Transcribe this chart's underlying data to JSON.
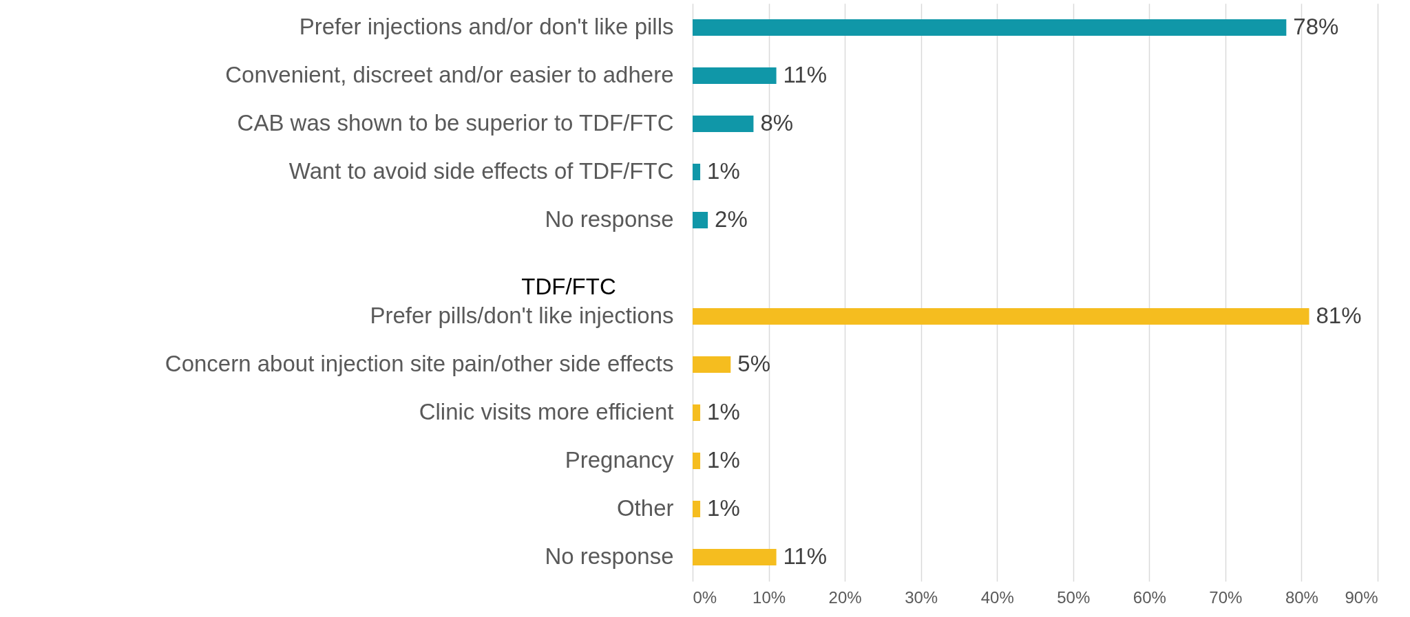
{
  "chart_data": {
    "type": "bar",
    "orientation": "horizontal",
    "categories": [
      "Prefer injections and/or don't like pills",
      "Convenient, discreet and/or easier to adhere",
      "CAB was shown to be superior to TDF/FTC",
      "Want to avoid side effects of TDF/FTC",
      "No response",
      null,
      "Prefer pills/don't like injections",
      "Concern about injection site pain/other side effects",
      "Clinic visits more efficient",
      "Pregnancy",
      "Other",
      "No response"
    ],
    "values": [
      78,
      11,
      8,
      1,
      2,
      null,
      81,
      5,
      1,
      1,
      1,
      11
    ],
    "value_labels": [
      "78%",
      "11%",
      "8%",
      "1%",
      "2%",
      null,
      "81%",
      "5%",
      "1%",
      "1%",
      "1%",
      "11%"
    ],
    "colors": [
      "#1097a8",
      "#1097a8",
      "#1097a8",
      "#1097a8",
      "#1097a8",
      null,
      "#f5bd1f",
      "#f5bd1f",
      "#f5bd1f",
      "#f5bd1f",
      "#f5bd1f",
      "#f5bd1f"
    ],
    "annotations": [
      "TDF/FTC"
    ],
    "xlim": [
      0,
      90
    ],
    "xticks": [
      {
        "value": 0,
        "label": "0%"
      },
      {
        "value": 10,
        "label": "10%"
      },
      {
        "value": 20,
        "label": "20%"
      },
      {
        "value": 30,
        "label": "30%"
      },
      {
        "value": 40,
        "label": "40%"
      },
      {
        "value": 50,
        "label": "50%"
      },
      {
        "value": 60,
        "label": "60%"
      },
      {
        "value": 70,
        "label": "70%"
      },
      {
        "value": 80,
        "label": "80%"
      },
      {
        "value": 90,
        "label": "90%"
      }
    ],
    "grid": "x"
  }
}
